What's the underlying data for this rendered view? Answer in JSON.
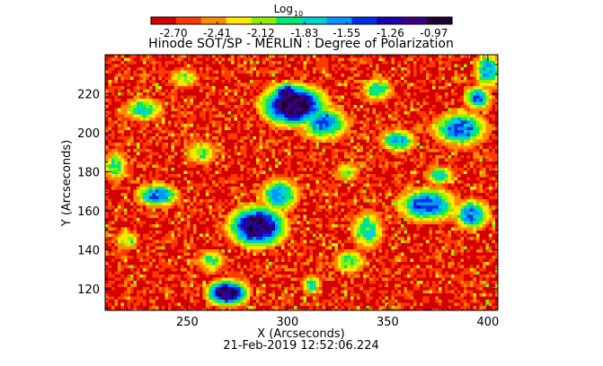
{
  "chart_data": {
    "type": "heatmap",
    "title": "Hinode SOT/SP - MERLIN : Degree of Polarization",
    "xlabel": "X (Arcseconds)",
    "ylabel": "Y (Arcseconds)",
    "xlim": [
      209,
      405
    ],
    "ylim": [
      109,
      240
    ],
    "x_ticks": [
      250,
      300,
      350,
      400
    ],
    "y_ticks": [
      120,
      140,
      160,
      180,
      200,
      220
    ],
    "timestamp": "21-Feb-2019 12:52:06.224",
    "colorbar": {
      "label": "Log",
      "label_subscript": "10",
      "range": [
        -2.85,
        -0.85
      ],
      "ticks": [
        "-2.70",
        "-2.41",
        "-2.12",
        "-1.83",
        "-1.55",
        "-1.26",
        "-0.97"
      ],
      "colors": [
        "#d40000",
        "#ff3a00",
        "#ff8c00",
        "#ffe800",
        "#8cf000",
        "#00e878",
        "#00d2d2",
        "#0096ff",
        "#0030e6",
        "#1a00b4",
        "#3a0082",
        "#200030"
      ]
    },
    "background_level": -2.7,
    "regions": [
      {
        "x": 303,
        "y": 214,
        "rx": 17,
        "ry": 11,
        "peak": -0.95
      },
      {
        "x": 300,
        "y": 220,
        "rx": 8,
        "ry": 6,
        "peak": -1.1
      },
      {
        "x": 318,
        "y": 205,
        "rx": 12,
        "ry": 9,
        "peak": -1.6
      },
      {
        "x": 285,
        "y": 152,
        "rx": 15,
        "ry": 11,
        "peak": -1.05
      },
      {
        "x": 296,
        "y": 168,
        "rx": 10,
        "ry": 9,
        "peak": -1.7
      },
      {
        "x": 270,
        "y": 118,
        "rx": 11,
        "ry": 7,
        "peak": -1.05
      },
      {
        "x": 235,
        "y": 168,
        "rx": 11,
        "ry": 6,
        "peak": -1.55
      },
      {
        "x": 228,
        "y": 212,
        "rx": 10,
        "ry": 6,
        "peak": -1.85
      },
      {
        "x": 370,
        "y": 163,
        "rx": 15,
        "ry": 9,
        "peak": -1.5
      },
      {
        "x": 392,
        "y": 158,
        "rx": 9,
        "ry": 8,
        "peak": -1.6
      },
      {
        "x": 386,
        "y": 202,
        "rx": 14,
        "ry": 9,
        "peak": -1.55
      },
      {
        "x": 400,
        "y": 232,
        "rx": 7,
        "ry": 9,
        "peak": -1.7
      },
      {
        "x": 395,
        "y": 218,
        "rx": 7,
        "ry": 6,
        "peak": -1.65
      },
      {
        "x": 355,
        "y": 196,
        "rx": 9,
        "ry": 6,
        "peak": -1.75
      },
      {
        "x": 345,
        "y": 222,
        "rx": 8,
        "ry": 6,
        "peak": -1.9
      },
      {
        "x": 340,
        "y": 150,
        "rx": 8,
        "ry": 10,
        "peak": -1.85
      },
      {
        "x": 331,
        "y": 134,
        "rx": 8,
        "ry": 6,
        "peak": -1.95
      },
      {
        "x": 312,
        "y": 122,
        "rx": 5,
        "ry": 5,
        "peak": -1.9
      },
      {
        "x": 257,
        "y": 190,
        "rx": 8,
        "ry": 6,
        "peak": -2.05
      },
      {
        "x": 262,
        "y": 134,
        "rx": 7,
        "ry": 6,
        "peak": -2.05
      },
      {
        "x": 214,
        "y": 183,
        "rx": 6,
        "ry": 8,
        "peak": -1.95
      },
      {
        "x": 220,
        "y": 145,
        "rx": 6,
        "ry": 5,
        "peak": -2.05
      },
      {
        "x": 376,
        "y": 178,
        "rx": 7,
        "ry": 5,
        "peak": -1.9
      },
      {
        "x": 248,
        "y": 228,
        "rx": 7,
        "ry": 5,
        "peak": -2.05
      },
      {
        "x": 330,
        "y": 180,
        "rx": 6,
        "ry": 5,
        "peak": -2.1
      }
    ]
  }
}
